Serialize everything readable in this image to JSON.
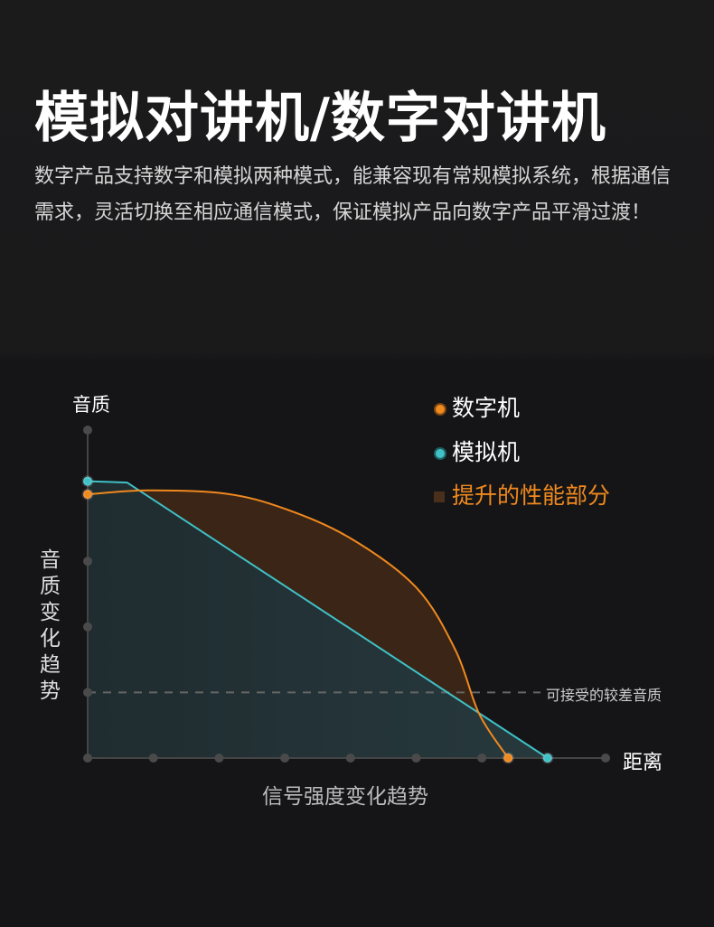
{
  "header": {
    "title": "模拟对讲机/数字对讲机",
    "description": "数字产品支持数字和模拟两种模式，能兼容现有常规模拟系统，根据通信需求，灵活切换至相应通信模式，保证模拟产品向数字产品平滑过渡！"
  },
  "chart_data": {
    "type": "area",
    "y_axis_top_label": "音质",
    "y_axis_side_label": "音质变化趋势",
    "x_axis_end_label": "距离",
    "xlabel": "信号强度变化趋势",
    "xlim": [
      0,
      7.9
    ],
    "ylim": [
      0,
      5
    ],
    "grid": false,
    "legend_position": "top-right",
    "threshold": {
      "y": 1,
      "label": "可接受的较差音质",
      "style": "dashed"
    },
    "series": [
      {
        "name": "数字机",
        "color": "#f0891e",
        "points": [
          [
            0,
            4.02
          ],
          [
            0.9,
            4.08
          ],
          [
            2.1,
            4.03
          ],
          [
            3,
            3.8
          ],
          [
            4,
            3.35
          ],
          [
            5,
            2.6
          ],
          [
            5.6,
            1.64
          ],
          [
            5.96,
            0.67
          ],
          [
            6.4,
            0
          ]
        ]
      },
      {
        "name": "模拟机",
        "color": "#3fc1c6",
        "points": [
          [
            0,
            4.22
          ],
          [
            0.6,
            4.2
          ],
          [
            7,
            0
          ]
        ]
      }
    ],
    "highlight": {
      "name": "提升的性能部分",
      "color": "#3a2517",
      "label_color": "#f0891e"
    }
  }
}
